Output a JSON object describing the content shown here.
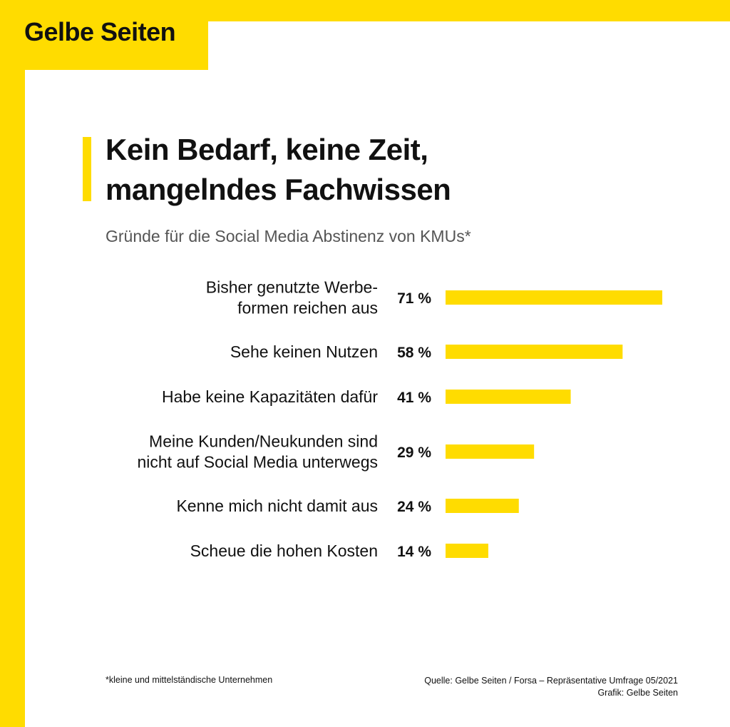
{
  "brand": {
    "logo": "Gelbe Seiten",
    "accent_color": "#FFDC00"
  },
  "header": {
    "title_line1": "Kein Bedarf, keine Zeit,",
    "title_line2": "mangelndes Fachwissen",
    "subtitle": "Gründe für die Social Media Abstinenz von KMUs*"
  },
  "chart_data": {
    "type": "bar",
    "orientation": "horizontal",
    "categories": [
      [
        "Bisher genutzte Werbe-",
        "formen reichen aus"
      ],
      [
        "Sehe keinen Nutzen"
      ],
      [
        "Habe keine Kapazitäten dafür"
      ],
      [
        "Meine Kunden/Neukunden sind",
        "nicht auf Social Media unterwegs"
      ],
      [
        "Kenne mich nicht damit aus"
      ],
      [
        "Scheue die hohen Kosten"
      ]
    ],
    "values": [
      71,
      58,
      41,
      29,
      24,
      14
    ],
    "value_labels": [
      "71 %",
      "58 %",
      "41 %",
      "29 %",
      "24 %",
      "14 %"
    ],
    "unit": "%",
    "xlim": [
      0,
      71
    ],
    "grid": false,
    "bar_color": "#FFDC00"
  },
  "footer": {
    "footnote": "*kleine und mittelständische Unternehmen",
    "source_line1": "Quelle: Gelbe Seiten / Forsa – Repräsentative Umfrage 05/2021",
    "source_line2": "Grafik: Gelbe Seiten"
  }
}
